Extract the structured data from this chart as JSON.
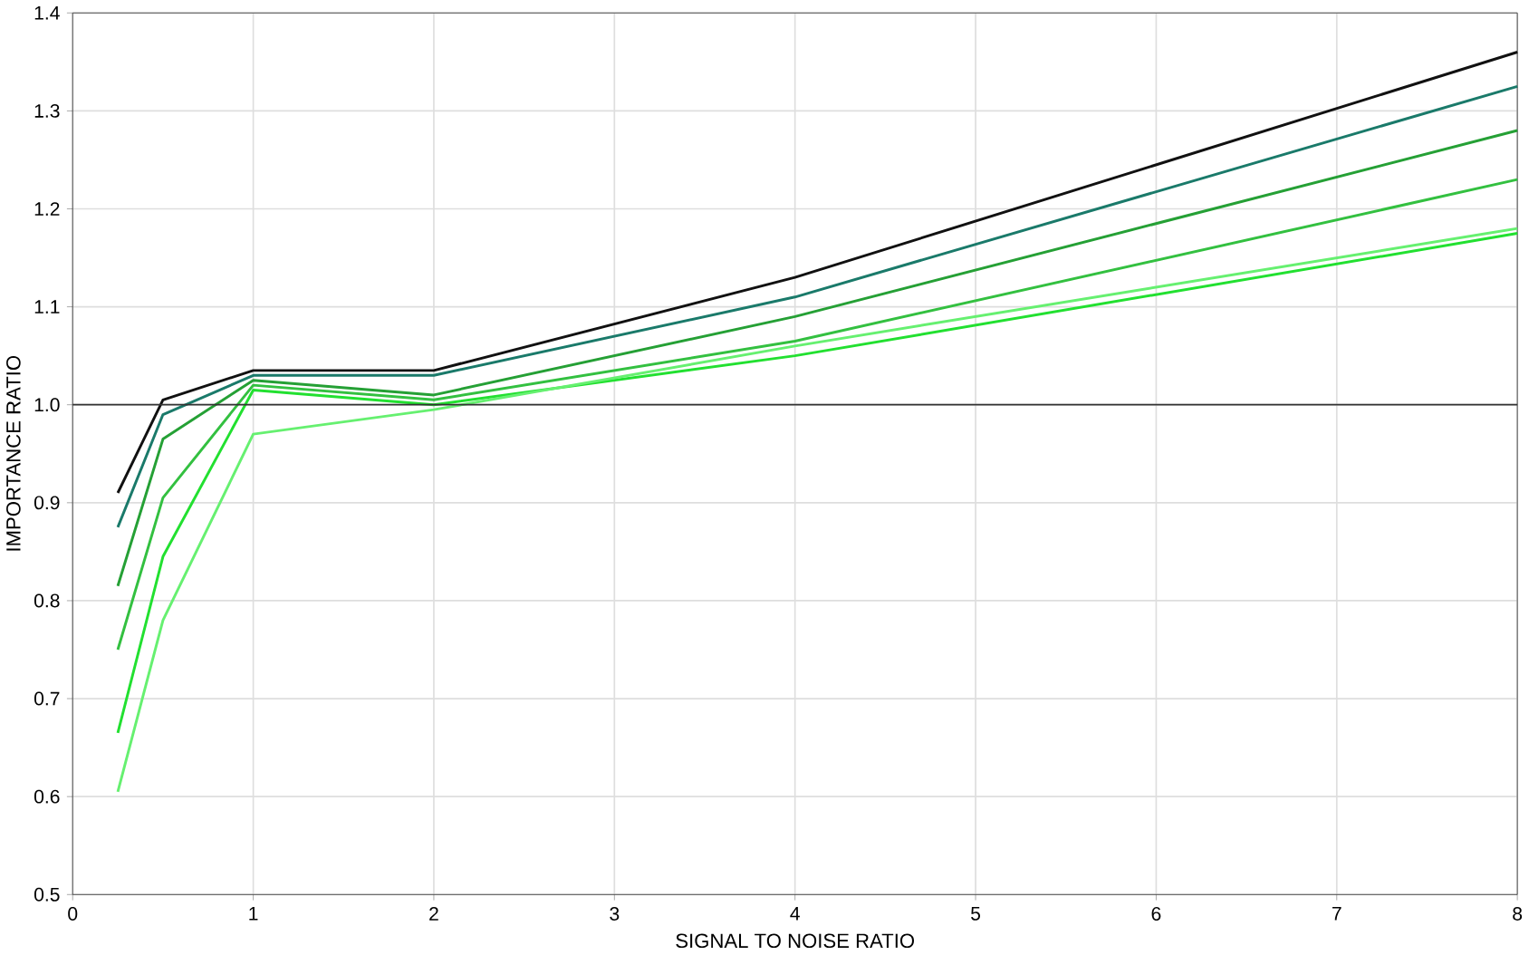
{
  "chart_data": {
    "type": "line",
    "xlabel": "SIGNAL TO NOISE RATIO",
    "ylabel": "IMPORTANCE RATIO",
    "x": [
      0.25,
      0.5,
      1,
      2,
      4,
      8
    ],
    "series": [
      {
        "color": "#111111",
        "values": [
          0.91,
          1.005,
          1.035,
          1.035,
          1.13,
          1.36
        ]
      },
      {
        "color": "#1a7a6a",
        "values": [
          0.875,
          0.99,
          1.03,
          1.03,
          1.11,
          1.325
        ]
      },
      {
        "color": "#25a035",
        "values": [
          0.815,
          0.965,
          1.025,
          1.01,
          1.09,
          1.28
        ]
      },
      {
        "color": "#33c040",
        "values": [
          0.75,
          0.905,
          1.02,
          1.005,
          1.065,
          1.23
        ]
      },
      {
        "color": "#22e030",
        "values": [
          0.665,
          0.845,
          1.015,
          1.0,
          1.05,
          1.175
        ]
      },
      {
        "color": "#66f070",
        "values": [
          0.605,
          0.78,
          0.97,
          0.995,
          1.06,
          1.18
        ]
      }
    ],
    "xlim": [
      0,
      8
    ],
    "xticks": [
      0,
      1,
      2,
      3,
      4,
      5,
      6,
      7,
      8
    ],
    "ylim": [
      0.5,
      1.4
    ],
    "yticks": [
      {
        "value": 0.5,
        "label": "0.5"
      },
      {
        "value": 0.6,
        "label": "0.6"
      },
      {
        "value": 0.7,
        "label": "0.7"
      },
      {
        "value": 0.8,
        "label": "0.8"
      },
      {
        "value": 0.9,
        "label": "0.9"
      },
      {
        "value": 1.0,
        "label": "1.0"
      },
      {
        "value": 1.1,
        "label": "1.1"
      },
      {
        "value": 1.2,
        "label": "1.2"
      },
      {
        "value": 1.3,
        "label": "1.3"
      },
      {
        "value": 1.4,
        "label": "1.4"
      }
    ],
    "ref_lines": [
      {
        "axis": "y",
        "value": 1.0,
        "color": "#333333"
      }
    ],
    "grid": true,
    "marker": "none",
    "line_style": "solid"
  }
}
